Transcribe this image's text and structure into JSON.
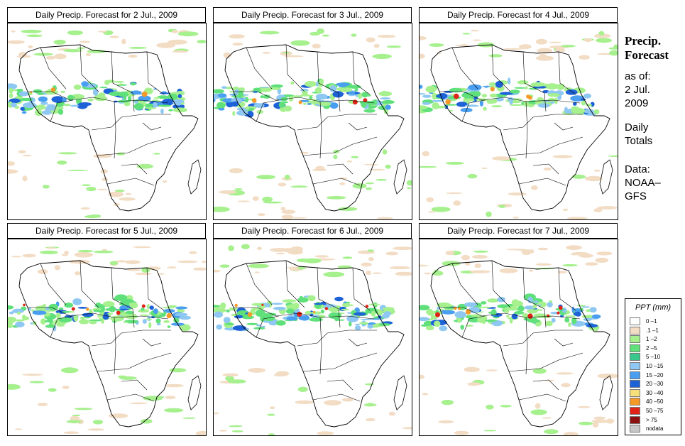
{
  "panels": [
    {
      "title": "Daily Precip. Forecast for  2 Jul., 2009",
      "day": 0
    },
    {
      "title": "Daily Precip. Forecast for  3 Jul., 2009",
      "day": 1
    },
    {
      "title": "Daily Precip. Forecast for  4 Jul., 2009",
      "day": 2
    },
    {
      "title": "Daily Precip. Forecast for  5 Jul., 2009",
      "day": 3
    },
    {
      "title": "Daily Precip. Forecast for  6 Jul., 2009",
      "day": 4
    },
    {
      "title": "Daily Precip. Forecast for  7 Jul., 2009",
      "day": 5
    }
  ],
  "side": {
    "title_line1": "Precip.",
    "title_line2": "Forecast",
    "asof_line1": "as of:",
    "asof_line2": "2 Jul.",
    "asof_line3": "2009",
    "daily_line1": "Daily",
    "daily_line2": "Totals",
    "data_line1": "Data:",
    "data_line2": "NOAA–",
    "data_line3": "GFS"
  },
  "legend": {
    "title": "PPT (mm)",
    "items": [
      {
        "label": "0 –1",
        "color": "#ffffff"
      },
      {
        "label": ".1 –1",
        "color": "#f2dcc4"
      },
      {
        "label": "1 –2",
        "color": "#a6f08e"
      },
      {
        "label": "2 –5",
        "color": "#5fe07a"
      },
      {
        "label": "5 –10",
        "color": "#38c88c"
      },
      {
        "label": "10 –15",
        "color": "#8ec8f2"
      },
      {
        "label": "15 –20",
        "color": "#4a9ef0"
      },
      {
        "label": "20 –30",
        "color": "#1e62d8"
      },
      {
        "label": "30 –40",
        "color": "#f5e07a"
      },
      {
        "label": "40 –50",
        "color": "#f59a28"
      },
      {
        "label": "50 –75",
        "color": "#e02418"
      },
      {
        "label": "> 75",
        "color": "#8c1010"
      },
      {
        "label": "nodata",
        "color": "#c8c8c8"
      }
    ]
  }
}
